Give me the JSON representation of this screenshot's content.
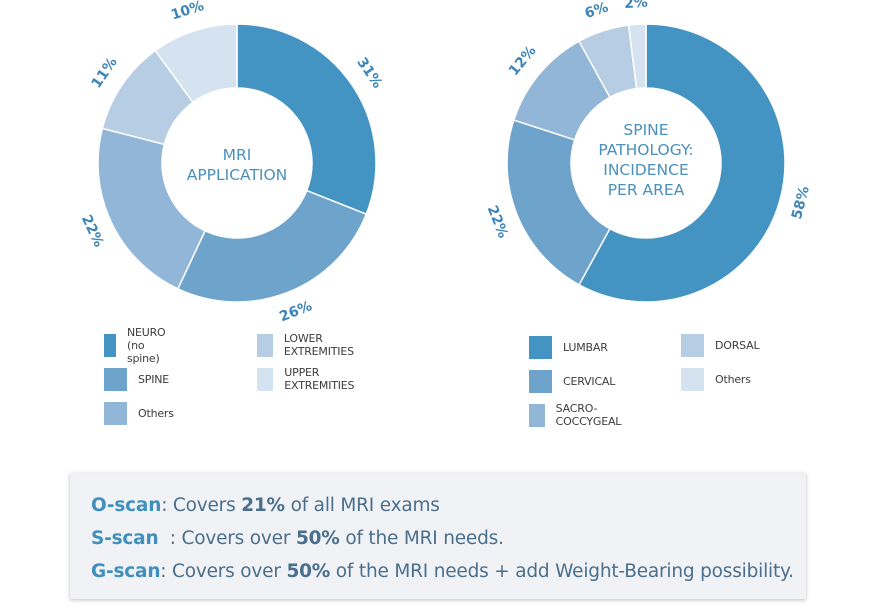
{
  "colors": {
    "c1": "#4494c3",
    "c2": "#6ea4cb",
    "c3": "#92b6d7",
    "c4": "#b6cde4",
    "c5": "#d5e3f0",
    "label": "#3d85b8",
    "center_text": "#4a90bd"
  },
  "chart_data": [
    {
      "type": "pie",
      "subtype": "donut",
      "title": "MRI APPLICATION",
      "title_lines": [
        "MRI",
        "APPLICATION"
      ],
      "categories": [
        "NEURO (no spine)",
        "SPINE",
        "Others",
        "LOWER EXTREMITIES",
        "UPPER EXTREMITIES"
      ],
      "values": [
        31,
        26,
        22,
        11,
        10
      ],
      "value_labels": [
        "31%",
        "26%",
        "22%",
        "11%",
        "10%"
      ],
      "slice_colors": [
        "#4494c3",
        "#6ea4cb",
        "#92b6d7",
        "#b6cde4",
        "#d5e3f0"
      ],
      "legend": [
        {
          "label": "NEURO (no spine)",
          "color": "#4494c3"
        },
        {
          "label": "SPINE",
          "color": "#6ea4cb"
        },
        {
          "label": "Others",
          "color": "#92b6d7"
        },
        {
          "label": "LOWER EXTREMITIES",
          "color": "#b6cde4"
        },
        {
          "label": "UPPER EXTREMITIES",
          "color": "#d5e3f0"
        }
      ]
    },
    {
      "type": "pie",
      "subtype": "donut",
      "title": "SPINE PATHOLOGY: INCIDENCE PER AREA",
      "title_lines": [
        "SPINE",
        "PATHOLOGY:",
        "INCIDENCE",
        "PER AREA"
      ],
      "categories": [
        "LUMBAR",
        "CERVICAL",
        "SACRO-COCCYGEAL",
        "DORSAL",
        "Others"
      ],
      "values": [
        58,
        22,
        12,
        6,
        2
      ],
      "value_labels": [
        "58%",
        "22%",
        "12%",
        "6%",
        "2%"
      ],
      "slice_colors": [
        "#4494c3",
        "#6ea4cb",
        "#92b6d7",
        "#b6cde4",
        "#d5e3f0"
      ],
      "legend": [
        {
          "label": "LUMBAR",
          "color": "#4494c3"
        },
        {
          "label": "CERVICAL",
          "color": "#6ea4cb"
        },
        {
          "label": "SACRO-COCCYGEAL",
          "color": "#92b6d7"
        },
        {
          "label": "DORSAL",
          "color": "#b6cde4"
        },
        {
          "label": "Others",
          "color": "#d5e3f0"
        }
      ]
    }
  ],
  "notes": {
    "oscan": {
      "name": "O-scan",
      "text1": ": Covers ",
      "value": "21%",
      "text2": " of all MRI exams"
    },
    "sscan": {
      "name": "S-scan",
      "text1": "  : Covers over ",
      "value": "50%",
      "text2": " of the MRI needs."
    },
    "gscan": {
      "name": "G-scan",
      "text1": ": Covers over ",
      "value": "50%",
      "text2": " of the MRI needs + add Weight-Bearing possibility."
    }
  }
}
